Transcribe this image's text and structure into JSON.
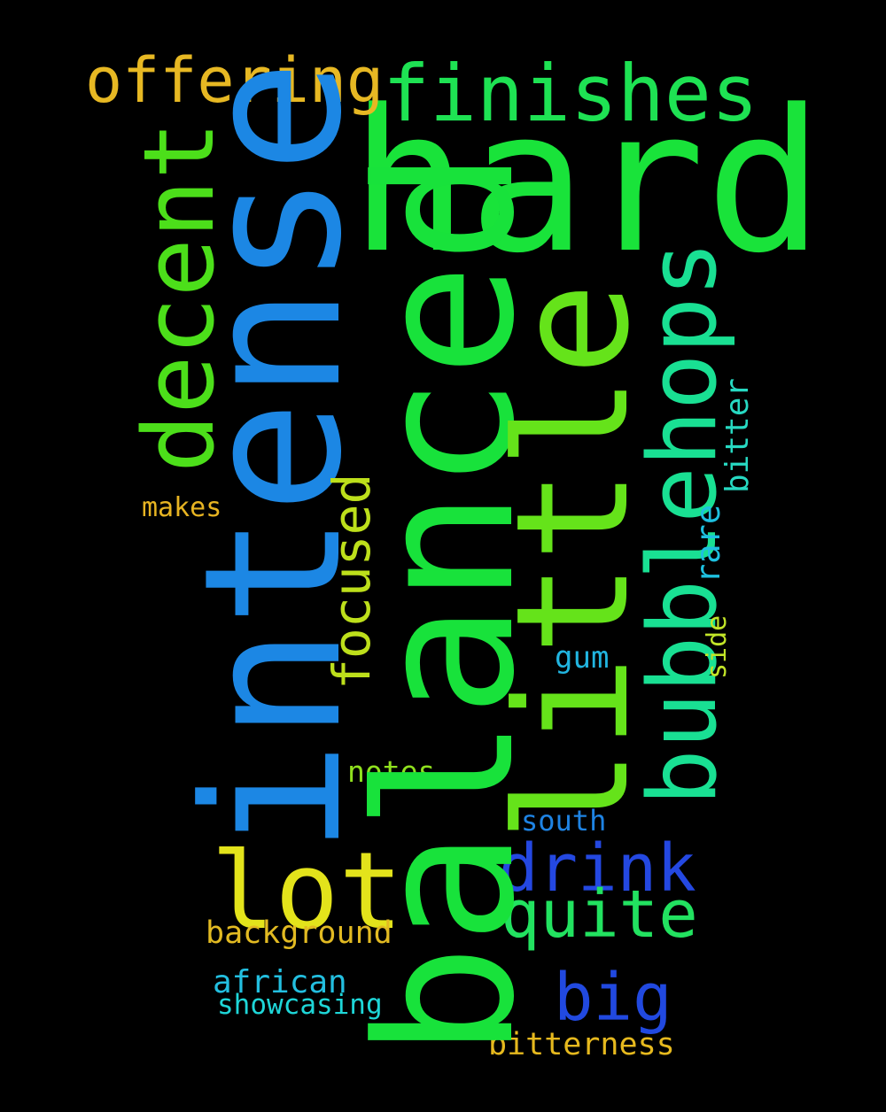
{
  "background": "#000000",
  "words": [
    {
      "key": "hard",
      "text": "hard",
      "color": "#19e33a"
    },
    {
      "key": "balanced",
      "text": "balanced",
      "color": "#18e23b"
    },
    {
      "key": "intense",
      "text": "intense",
      "color": "#1c87e4"
    },
    {
      "key": "little",
      "text": "little",
      "color": "#65e31a"
    },
    {
      "key": "bubblehops",
      "text": "bubblehops",
      "color": "#19e093"
    },
    {
      "key": "decent",
      "text": "decent",
      "color": "#4cdf1a"
    },
    {
      "key": "finishes",
      "text": "finishes",
      "color": "#1ee253"
    },
    {
      "key": "offering",
      "text": "offering",
      "color": "#e7b823"
    },
    {
      "key": "lot",
      "text": "lot",
      "color": "#e3e31b"
    },
    {
      "key": "drink",
      "text": "drink",
      "color": "#2448e1"
    },
    {
      "key": "quite",
      "text": "quite",
      "color": "#22e260"
    },
    {
      "key": "big",
      "text": "big",
      "color": "#2149e0"
    },
    {
      "key": "focused",
      "text": "focused",
      "color": "#bddf1b"
    },
    {
      "key": "bitter",
      "text": "bitter",
      "color": "#27d9c2"
    },
    {
      "key": "rare",
      "text": "rare",
      "color": "#1ec0e0"
    },
    {
      "key": "side",
      "text": "side",
      "color": "#c2e428"
    },
    {
      "key": "makes",
      "text": "makes",
      "color": "#e7b422"
    },
    {
      "key": "gum",
      "text": "gum",
      "color": "#21b5e0"
    },
    {
      "key": "notes",
      "text": "notes",
      "color": "#8fe01e"
    },
    {
      "key": "south",
      "text": "south",
      "color": "#1e83e3"
    },
    {
      "key": "background",
      "text": "background",
      "color": "#e2ba22"
    },
    {
      "key": "african",
      "text": "african",
      "color": "#23bfe0"
    },
    {
      "key": "showcasing",
      "text": "showcasing",
      "color": "#1ed6d8"
    },
    {
      "key": "bitterness",
      "text": "bitterness",
      "color": "#e6b91e"
    }
  ]
}
